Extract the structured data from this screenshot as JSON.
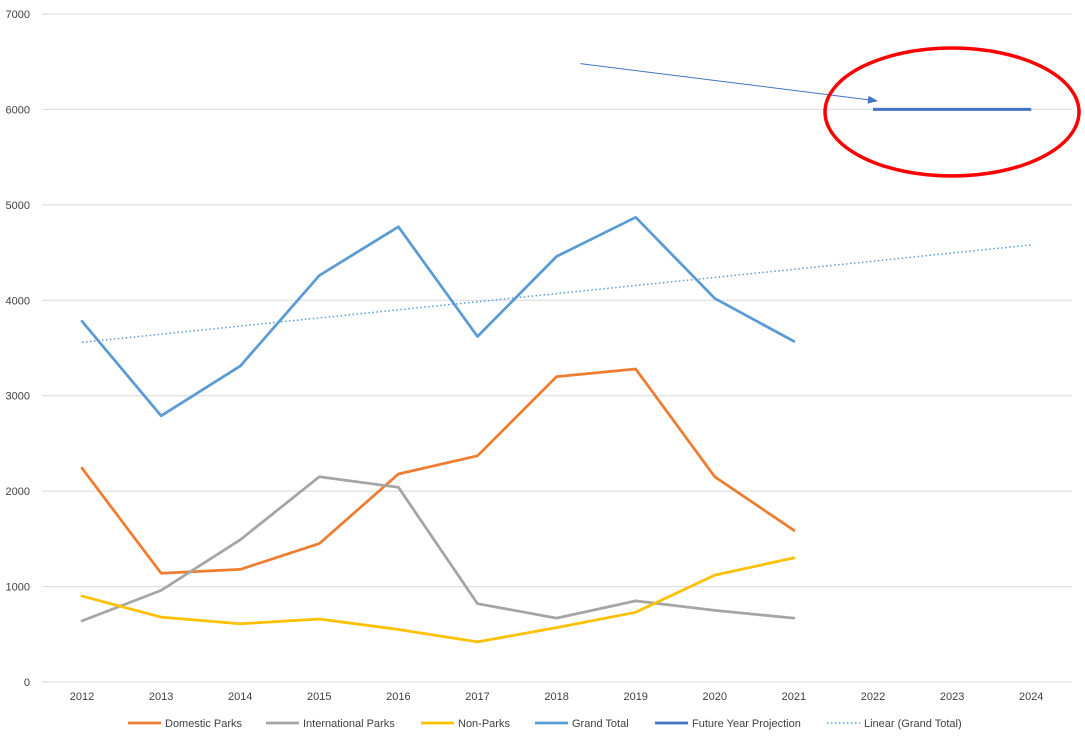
{
  "chart_data": {
    "type": "line",
    "title": "",
    "xlabel": "",
    "ylabel": "",
    "categories": [
      "2012",
      "2013",
      "2014",
      "2015",
      "2016",
      "2017",
      "2018",
      "2019",
      "2020",
      "2021",
      "2022",
      "2023",
      "2024"
    ],
    "ylim": [
      0,
      7000
    ],
    "yticks": [
      0,
      1000,
      2000,
      3000,
      4000,
      5000,
      6000,
      7000
    ],
    "grid": true,
    "legend_position": "bottom",
    "series": [
      {
        "name": "Domestic Parks",
        "color": "#ED7D31",
        "style": "solid",
        "values": [
          2240,
          1140,
          1180,
          1450,
          2180,
          2370,
          3200,
          3280,
          2150,
          1590,
          null,
          null,
          null
        ]
      },
      {
        "name": "International Parks",
        "color": "#A5A5A5",
        "style": "solid",
        "values": [
          640,
          960,
          1490,
          2150,
          2040,
          820,
          670,
          850,
          750,
          670,
          null,
          null,
          null
        ]
      },
      {
        "name": "Non-Parks",
        "color": "#FFC000",
        "style": "solid",
        "values": [
          900,
          680,
          610,
          660,
          550,
          420,
          570,
          730,
          1120,
          1300,
          null,
          null,
          null
        ]
      },
      {
        "name": "Grand Total",
        "color": "#5B9BD5",
        "style": "solid",
        "values": [
          3780,
          2790,
          3310,
          4260,
          4770,
          3620,
          4460,
          4870,
          4020,
          3570,
          null,
          null,
          null
        ]
      },
      {
        "name": "Future Year Projection",
        "color": "#4472C4",
        "style": "solid",
        "values": [
          null,
          null,
          null,
          null,
          null,
          null,
          null,
          null,
          null,
          null,
          6000,
          6000,
          6000
        ]
      },
      {
        "name": "Linear (Grand Total)",
        "color": "#5B9BD5",
        "style": "dotted",
        "values": [
          3560,
          3645,
          3730,
          3815,
          3900,
          3985,
          4070,
          4155,
          4240,
          4325,
          4410,
          4495,
          4580
        ]
      }
    ],
    "annotations": [
      {
        "type": "arrow",
        "color": "#4472C4",
        "from": {
          "x": "2018.3",
          "y": 6480
        },
        "to": {
          "x": "2022.1",
          "y": 6090
        }
      },
      {
        "type": "ellipse",
        "color": "#FF0000",
        "target": "Future Year Projection"
      }
    ]
  }
}
